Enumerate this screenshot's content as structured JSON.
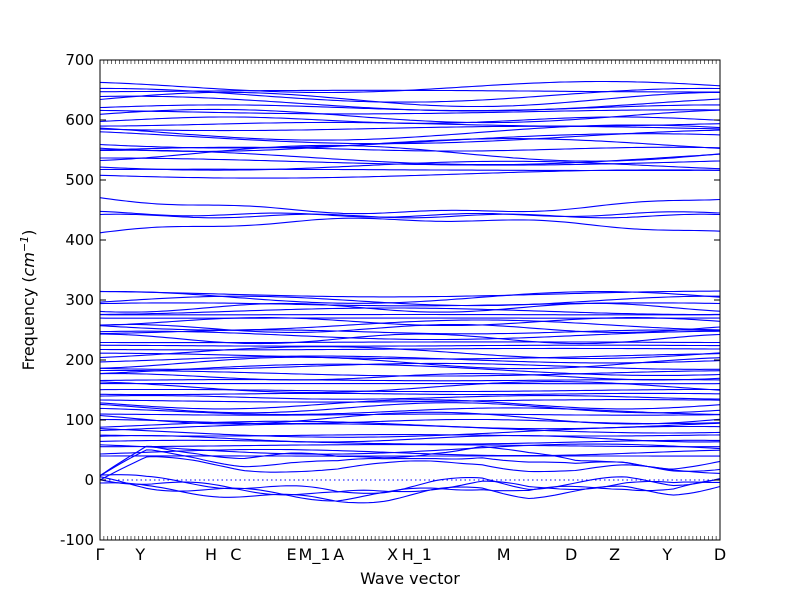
{
  "chart_data": {
    "type": "line",
    "title": "",
    "xlabel": "Wave vector",
    "ylabel_text": "Frequency (",
    "ylabel_unit": "cm",
    "ylabel_exp": "−1",
    "ylabel_close": ")",
    "ylim": [
      -100,
      700
    ],
    "yticks": [
      -100,
      0,
      100,
      200,
      300,
      400,
      500,
      600,
      700
    ],
    "xlim": [
      0,
      100
    ],
    "xticks": [
      {
        "label": "Γ",
        "x": 0
      },
      {
        "label": "Y",
        "x": 6.5
      },
      {
        "label": "H",
        "x": 17.9
      },
      {
        "label": "C",
        "x": 21.9
      },
      {
        "label": "E",
        "x": 30.9
      },
      {
        "label": "M_1",
        "x": 34.6
      },
      {
        "label": "A",
        "x": 38.5
      },
      {
        "label": "X",
        "x": 47.2
      },
      {
        "label": "H_1",
        "x": 51.1
      },
      {
        "label": "M",
        "x": 65.1
      },
      {
        "label": "D",
        "x": 76.0
      },
      {
        "label": "Z",
        "x": 83.0
      },
      {
        "label": "Y",
        "x": 91.5
      },
      {
        "label": "D",
        "x": 100
      }
    ],
    "zero_line": 0,
    "line_color": "#0000ff",
    "band_groups": [
      {
        "name": "acoustic-imaginary",
        "base": [
          0,
          45,
          40,
          30,
          30,
          25,
          30,
          40,
          45,
          30,
          20,
          25,
          20,
          25
        ]
      },
      {
        "name": "soft-modes",
        "base": [
          -5,
          -15,
          -20,
          -25,
          -30,
          -35,
          -30,
          -20,
          -15,
          -25,
          -20,
          -15,
          -20,
          -10
        ]
      },
      {
        "name": "low-optical",
        "min": 40,
        "max": 310,
        "count": 48
      },
      {
        "name": "mid-optical",
        "values": [
          412,
          440,
          445,
          470
        ]
      },
      {
        "name": "high-optical",
        "min": 510,
        "max": 655,
        "count": 22
      }
    ]
  }
}
